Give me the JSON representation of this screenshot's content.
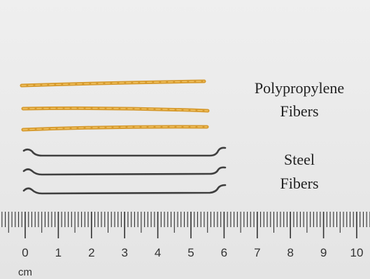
{
  "labels": {
    "polypropylene": [
      "Polypropylene",
      "Fibers"
    ],
    "steel": [
      "Steel",
      "Fibers"
    ]
  },
  "ruler": {
    "numbers": [
      "0",
      "1",
      "2",
      "3",
      "4",
      "5",
      "6",
      "7",
      "8",
      "9",
      "10"
    ],
    "unit": "cm"
  }
}
